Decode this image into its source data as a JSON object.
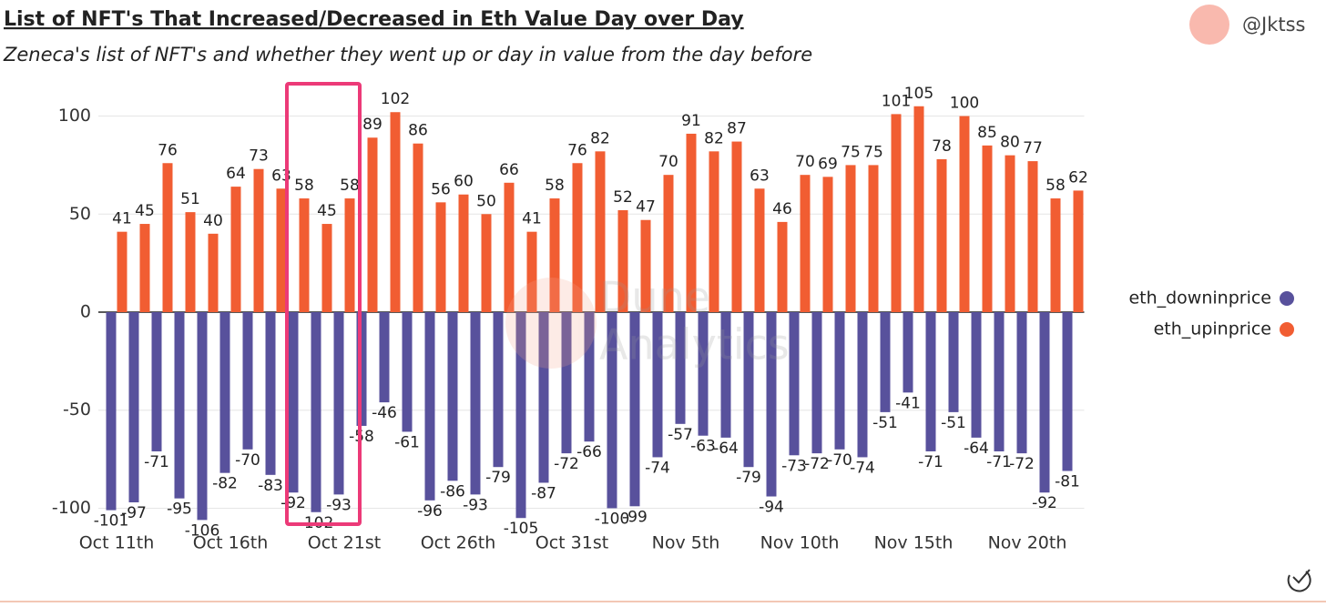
{
  "chart_data": {
    "type": "bar",
    "title": "List of NFT's That Increased/Decreased in Eth Value Day over Day",
    "subtitle": "Zeneca's list of NFT's and whether they went up or day in value from the day before",
    "author": "@Jktss",
    "watermark": [
      "Dune",
      "Analytics"
    ],
    "categories": [
      "Oct 11th",
      null,
      null,
      null,
      null,
      "Oct 16th",
      null,
      null,
      null,
      null,
      "Oct 21st",
      null,
      null,
      null,
      null,
      "Oct 26th",
      null,
      null,
      null,
      null,
      "Oct 31st",
      null,
      null,
      null,
      null,
      "Nov 5th",
      null,
      null,
      null,
      null,
      "Nov 10th",
      null,
      null,
      null,
      null,
      "Nov 15th",
      null,
      null,
      null,
      null,
      "Nov 20th",
      null,
      null
    ],
    "series": [
      {
        "name": "eth_downinprice",
        "color": "#58519c",
        "values": [
          -101,
          -97,
          -71,
          -95,
          -106,
          -82,
          -70,
          -83,
          -92,
          -102,
          -93,
          -58,
          -46,
          -61,
          -96,
          -86,
          -93,
          -79,
          -105,
          -87,
          -72,
          -66,
          -100,
          -99,
          -74,
          -57,
          -63,
          -64,
          -79,
          -94,
          -73,
          -72,
          -70,
          -74,
          -51,
          -41,
          -71,
          -51,
          -64,
          -71,
          -72,
          -92,
          -81
        ]
      },
      {
        "name": "eth_upinprice",
        "color": "#f15d32",
        "values": [
          41,
          45,
          76,
          51,
          40,
          64,
          73,
          63,
          58,
          45,
          58,
          89,
          102,
          86,
          56,
          60,
          50,
          66,
          41,
          58,
          76,
          82,
          52,
          47,
          70,
          91,
          82,
          87,
          63,
          46,
          70,
          69,
          75,
          75,
          101,
          105,
          78,
          100,
          85,
          80,
          77,
          58,
          62
        ]
      }
    ],
    "ylim": [
      -110,
      110
    ],
    "yticks": [
      -100,
      -50,
      0,
      50,
      100
    ],
    "grid": true,
    "legend": "right"
  }
}
